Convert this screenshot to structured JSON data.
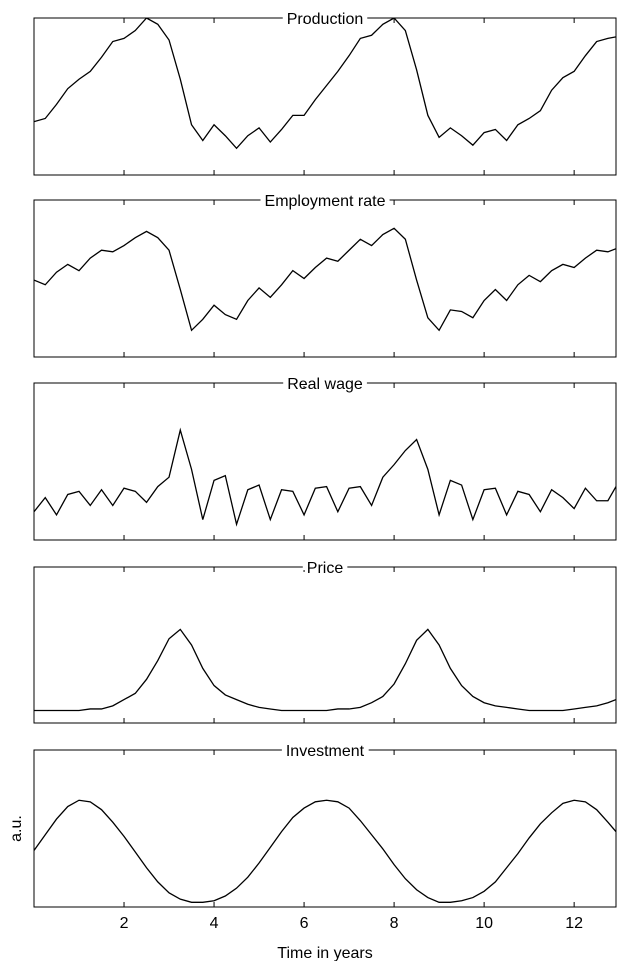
{
  "chart_data": [
    {
      "type": "line",
      "title": "Production",
      "x": [
        0,
        0.25,
        0.5,
        0.75,
        1,
        1.25,
        1.5,
        1.75,
        2,
        2.25,
        2.5,
        2.75,
        3,
        3.25,
        3.5,
        3.75,
        4,
        4.25,
        4.5,
        4.75,
        5,
        5.25,
        5.5,
        5.75,
        6,
        6.25,
        6.5,
        6.75,
        7,
        7.25,
        7.5,
        7.75,
        8,
        8.25,
        8.5,
        8.75,
        9,
        9.25,
        9.5,
        9.75,
        10,
        10.25,
        10.5,
        10.75,
        11,
        11.25,
        11.5,
        11.75,
        12,
        12.25,
        12.5,
        12.75,
        12.93
      ],
      "values": [
        0.34,
        0.36,
        0.45,
        0.55,
        0.61,
        0.66,
        0.75,
        0.85,
        0.87,
        0.92,
        1.0,
        0.96,
        0.86,
        0.61,
        0.32,
        0.22,
        0.32,
        0.25,
        0.17,
        0.25,
        0.3,
        0.21,
        0.29,
        0.38,
        0.38,
        0.48,
        0.57,
        0.66,
        0.76,
        0.87,
        0.89,
        0.96,
        1.0,
        0.92,
        0.67,
        0.38,
        0.24,
        0.3,
        0.25,
        0.19,
        0.27,
        0.29,
        0.22,
        0.32,
        0.36,
        0.41,
        0.54,
        0.62,
        0.66,
        0.76,
        0.85,
        0.87,
        0.88
      ],
      "color": "#000000",
      "xlim": [
        0,
        12.93
      ],
      "ylim": [
        0,
        1
      ]
    },
    {
      "type": "line",
      "title": "Employment rate",
      "x": [
        0,
        0.25,
        0.5,
        0.75,
        1,
        1.25,
        1.5,
        1.75,
        2,
        2.25,
        2.5,
        2.75,
        3,
        3.25,
        3.5,
        3.75,
        4,
        4.25,
        4.5,
        4.75,
        5,
        5.25,
        5.5,
        5.75,
        6,
        6.25,
        6.5,
        6.75,
        7,
        7.25,
        7.5,
        7.75,
        8,
        8.25,
        8.5,
        8.75,
        9,
        9.25,
        9.5,
        9.75,
        10,
        10.25,
        10.5,
        10.75,
        11,
        11.25,
        11.5,
        11.75,
        12,
        12.25,
        12.5,
        12.75,
        12.93
      ],
      "values": [
        0.49,
        0.46,
        0.54,
        0.59,
        0.55,
        0.63,
        0.68,
        0.67,
        0.71,
        0.76,
        0.8,
        0.76,
        0.68,
        0.43,
        0.17,
        0.24,
        0.33,
        0.27,
        0.24,
        0.36,
        0.44,
        0.38,
        0.46,
        0.55,
        0.5,
        0.57,
        0.63,
        0.61,
        0.68,
        0.75,
        0.71,
        0.78,
        0.82,
        0.75,
        0.49,
        0.25,
        0.17,
        0.3,
        0.29,
        0.25,
        0.36,
        0.43,
        0.36,
        0.46,
        0.52,
        0.48,
        0.55,
        0.59,
        0.57,
        0.63,
        0.68,
        0.67,
        0.69
      ],
      "color": "#000000",
      "xlim": [
        0,
        12.93
      ],
      "ylim": [
        0,
        1
      ]
    },
    {
      "type": "line",
      "title": "Real wage",
      "x": [
        0,
        0.25,
        0.5,
        0.75,
        1,
        1.25,
        1.5,
        1.75,
        2,
        2.25,
        2.5,
        2.75,
        3,
        3.25,
        3.5,
        3.75,
        4,
        4.25,
        4.5,
        4.75,
        5,
        5.25,
        5.5,
        5.75,
        6,
        6.25,
        6.5,
        6.75,
        7,
        7.25,
        7.5,
        7.75,
        8,
        8.25,
        8.5,
        8.75,
        9,
        9.25,
        9.5,
        9.75,
        10,
        10.25,
        10.5,
        10.75,
        11,
        11.25,
        11.5,
        11.75,
        12,
        12.25,
        12.5,
        12.75,
        12.93
      ],
      "values": [
        0.18,
        0.27,
        0.16,
        0.29,
        0.31,
        0.22,
        0.32,
        0.22,
        0.33,
        0.31,
        0.24,
        0.34,
        0.4,
        0.7,
        0.45,
        0.13,
        0.38,
        0.41,
        0.1,
        0.32,
        0.35,
        0.13,
        0.32,
        0.31,
        0.16,
        0.33,
        0.34,
        0.18,
        0.33,
        0.34,
        0.22,
        0.4,
        0.48,
        0.57,
        0.64,
        0.45,
        0.16,
        0.38,
        0.35,
        0.13,
        0.32,
        0.33,
        0.16,
        0.31,
        0.29,
        0.18,
        0.32,
        0.27,
        0.2,
        0.33,
        0.25,
        0.25,
        0.34
      ],
      "color": "#000000",
      "xlim": [
        0,
        12.93
      ],
      "ylim": [
        0,
        1
      ]
    },
    {
      "type": "line",
      "title": "Price",
      "x": [
        0,
        0.25,
        0.5,
        0.75,
        1,
        1.25,
        1.5,
        1.75,
        2,
        2.25,
        2.5,
        2.75,
        3,
        3.25,
        3.5,
        3.75,
        4,
        4.25,
        4.5,
        4.75,
        5,
        5.25,
        5.5,
        5.75,
        6,
        6.25,
        6.5,
        6.75,
        7,
        7.25,
        7.5,
        7.75,
        8,
        8.25,
        8.5,
        8.75,
        9,
        9.25,
        9.5,
        9.75,
        10,
        10.25,
        10.5,
        10.75,
        11,
        11.25,
        11.5,
        11.75,
        12,
        12.25,
        12.5,
        12.75,
        12.93
      ],
      "values": [
        0.08,
        0.08,
        0.08,
        0.08,
        0.08,
        0.09,
        0.09,
        0.11,
        0.15,
        0.19,
        0.28,
        0.4,
        0.54,
        0.6,
        0.5,
        0.35,
        0.24,
        0.18,
        0.15,
        0.12,
        0.1,
        0.09,
        0.08,
        0.08,
        0.08,
        0.08,
        0.08,
        0.09,
        0.09,
        0.1,
        0.13,
        0.17,
        0.25,
        0.38,
        0.53,
        0.6,
        0.5,
        0.35,
        0.24,
        0.17,
        0.13,
        0.11,
        0.1,
        0.09,
        0.08,
        0.08,
        0.08,
        0.08,
        0.09,
        0.1,
        0.11,
        0.13,
        0.15
      ],
      "color": "#000000",
      "xlim": [
        0,
        12.93
      ],
      "ylim": [
        0,
        1
      ]
    },
    {
      "type": "line",
      "title": "Investment",
      "x_label": "Time in years",
      "y_label": "a.u.",
      "x": [
        0,
        0.25,
        0.5,
        0.75,
        1,
        1.25,
        1.5,
        1.75,
        2,
        2.25,
        2.5,
        2.75,
        3,
        3.25,
        3.5,
        3.75,
        4,
        4.25,
        4.5,
        4.75,
        5,
        5.25,
        5.5,
        5.75,
        6,
        6.25,
        6.5,
        6.75,
        7,
        7.25,
        7.5,
        7.75,
        8,
        8.25,
        8.5,
        8.75,
        9,
        9.25,
        9.5,
        9.75,
        10,
        10.25,
        10.5,
        10.75,
        11,
        11.25,
        11.5,
        11.75,
        12,
        12.25,
        12.5,
        12.75,
        12.93
      ],
      "values": [
        0.36,
        0.46,
        0.56,
        0.64,
        0.68,
        0.67,
        0.62,
        0.54,
        0.45,
        0.35,
        0.25,
        0.16,
        0.09,
        0.05,
        0.03,
        0.03,
        0.04,
        0.07,
        0.12,
        0.19,
        0.28,
        0.38,
        0.48,
        0.57,
        0.63,
        0.67,
        0.68,
        0.67,
        0.63,
        0.55,
        0.46,
        0.37,
        0.27,
        0.18,
        0.11,
        0.06,
        0.03,
        0.03,
        0.04,
        0.06,
        0.1,
        0.16,
        0.25,
        0.34,
        0.44,
        0.53,
        0.6,
        0.66,
        0.68,
        0.67,
        0.62,
        0.54,
        0.48
      ],
      "color": "#000000",
      "xlim": [
        0,
        12.93
      ],
      "ylim": [
        0,
        1
      ],
      "xticks": [
        2,
        4,
        6,
        8,
        10,
        12
      ]
    }
  ]
}
